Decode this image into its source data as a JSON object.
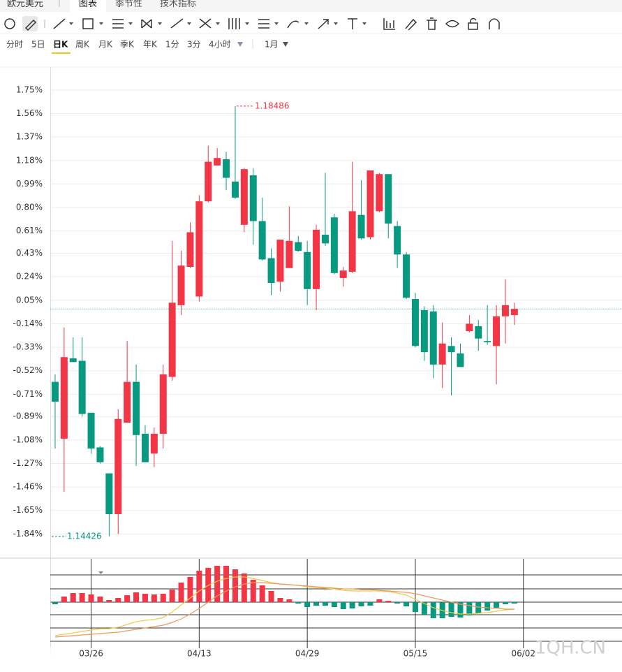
{
  "tabs": {
    "symbol": "欧元美元",
    "items": [
      "图表",
      "季节性",
      "技术指标"
    ]
  },
  "periods": [
    "分时",
    "5日",
    "日K",
    "周K",
    "月K",
    "季K",
    "年K",
    "1分",
    "3分",
    "4小时"
  ],
  "active_period": 2,
  "range": "1月",
  "watermark": "1QH.CN",
  "chart_data": [
    {
      "type": "candlestick",
      "categories": [
        null,
        null,
        null,
        null,
        "03/26",
        null,
        null,
        null,
        null,
        null,
        null,
        null,
        null,
        null,
        null,
        null,
        "04/13",
        null,
        null,
        null,
        null,
        null,
        null,
        null,
        null,
        null,
        null,
        null,
        "04/29",
        null,
        null,
        null,
        null,
        null,
        null,
        null,
        null,
        null,
        null,
        null,
        "05/15",
        null,
        null,
        null,
        null,
        null,
        null,
        null,
        null,
        null,
        null,
        null,
        "06/02"
      ],
      "open": [
        -0.61,
        -1.07,
        -0.42,
        -0.44,
        -0.86,
        -1.14,
        -1.35,
        -1.68,
        -0.94,
        -0.61,
        -1.03,
        -1.19,
        -1.03,
        -0.57,
        0.01,
        0.32,
        0.08,
        0.85,
        1.14,
        1.19,
        1.01,
        0.66,
        1.06,
        0.69,
        0.39,
        0.2,
        0.31,
        0.52,
        0.44,
        0.14,
        0.58,
        0.72,
        0.23,
        0.28,
        0.74,
        0.56,
        0.77,
        1.07,
        0.65,
        0.42,
        0.06,
        -0.03,
        -0.04,
        -0.47,
        -0.32,
        -0.38,
        -0.2,
        -0.16,
        -0.28,
        -0.32,
        -0.08,
        -0.07,
        null
      ],
      "high": [
        -0.55,
        -0.17,
        -0.25,
        -0.25,
        -0.86,
        -1.13,
        -1.35,
        -0.83,
        -0.28,
        -0.47,
        -0.96,
        -0.98,
        -0.47,
        0.53,
        0.45,
        0.68,
        0.9,
        1.3,
        1.28,
        1.25,
        1.62,
        1.12,
        1.12,
        0.88,
        0.47,
        0.54,
        0.81,
        0.57,
        0.53,
        0.66,
        1.08,
        0.75,
        0.32,
        1.17,
        1.02,
        1.1,
        1.08,
        1.07,
        0.69,
        0.44,
        0.11,
        0,
        0.01,
        -0.13,
        -0.25,
        -0.3,
        -0.07,
        -0.11,
        0.01,
        0.01,
        0.22,
        0.03,
        null
      ],
      "low": [
        -1.15,
        -1.5,
        -0.45,
        -0.89,
        -1.19,
        -1.27,
        -1.86,
        -1.84,
        -0.94,
        -1.29,
        -1.26,
        -1.3,
        -1.15,
        -0.6,
        -0.07,
        0.31,
        0.04,
        0.84,
        1.14,
        0.94,
        0.87,
        0.6,
        0.5,
        0.37,
        0.09,
        0.12,
        0.31,
        0.44,
        0.01,
        -0.03,
        0.49,
        0.26,
        0.16,
        0.27,
        0.54,
        0.54,
        0.76,
        0.55,
        0.31,
        0.06,
        -0.33,
        -0.44,
        -0.58,
        -0.66,
        -0.72,
        -0.49,
        -0.21,
        -0.36,
        -0.31,
        -0.63,
        -0.3,
        -0.15,
        null
      ],
      "close": [
        -0.77,
        -0.41,
        -0.45,
        -0.87,
        -1.15,
        -1.26,
        -1.68,
        -0.91,
        -0.61,
        -1.04,
        -1.26,
        -1.03,
        -0.55,
        0.03,
        0.33,
        0.6,
        0.85,
        1.17,
        1.2,
        1.04,
        0.88,
        1.11,
        0.69,
        0.38,
        0.19,
        0.54,
        0.53,
        0.45,
        0.14,
        0.62,
        0.51,
        0.27,
        0.29,
        0.77,
        0.55,
        1.1,
        1.07,
        0.67,
        0.42,
        0.07,
        -0.32,
        -0.37,
        -0.47,
        -0.3,
        -0.37,
        -0.49,
        -0.14,
        -0.26,
        -0.29,
        -0.08,
        0.01,
        -0.02,
        null
      ],
      "up_color": "#f23645",
      "down_color": "#089981",
      "ylim": [
        -2.03,
        1.93
      ],
      "yticks": [
        {
          "value": 1.75,
          "label": "1.75%"
        },
        {
          "value": 1.56,
          "label": "1.56%"
        },
        {
          "value": 1.37,
          "label": "1.37%"
        },
        {
          "value": 1.18,
          "label": "1.18%"
        },
        {
          "value": 0.99,
          "label": "0.99%"
        },
        {
          "value": 0.8,
          "label": "0.80%"
        },
        {
          "value": 0.61,
          "label": "0.61%"
        },
        {
          "value": 0.43,
          "label": "0.43%"
        },
        {
          "value": 0.24,
          "label": "0.24%"
        },
        {
          "value": 0.05,
          "label": "0.05%"
        },
        {
          "value": -0.14,
          "label": "-0.14%"
        },
        {
          "value": -0.33,
          "label": "-0.33%"
        },
        {
          "value": -0.52,
          "label": "-0.52%"
        },
        {
          "value": -0.71,
          "label": "-0.71%"
        },
        {
          "value": -0.89,
          "label": "-0.89%"
        },
        {
          "value": -1.08,
          "label": "-1.08%"
        },
        {
          "value": -1.27,
          "label": "-1.27%"
        },
        {
          "value": -1.46,
          "label": "-1.46%"
        },
        {
          "value": -1.65,
          "label": "-1.65%"
        },
        {
          "value": -1.84,
          "label": "-1.84%"
        }
      ],
      "grid": true,
      "annotations": {
        "high": "1.18486",
        "low": "1.14426"
      },
      "last_price_line": true
    },
    {
      "type": "macd",
      "histogram": {
        "up_color": "#f23645",
        "down_color": "#089981",
        "values": [
          -0.003,
          0.008,
          0.013,
          0.013,
          0.011,
          0.008,
          0.003,
          0.006,
          0.01,
          0.014,
          0.012,
          0.011,
          0.012,
          0.018,
          0.028,
          0.036,
          0.045,
          0.049,
          0.052,
          0.052,
          0.047,
          0.041,
          0.032,
          0.024,
          0.016,
          0.006,
          0.004,
          -0.002,
          -0.007,
          -0.005,
          -0.005,
          -0.007,
          -0.01,
          -0.009,
          -0.006,
          -0.005,
          0.004,
          0.002,
          -0.002,
          -0.006,
          -0.014,
          -0.018,
          -0.023,
          -0.023,
          -0.021,
          -0.022,
          -0.019,
          -0.016,
          -0.012,
          -0.008,
          -0.003,
          -0.002,
          null
        ]
      },
      "lines": [
        {
          "color": "#f2c94c",
          "values": [
            -0.048,
            -0.046,
            -0.044,
            -0.042,
            -0.04,
            -0.038,
            -0.038,
            -0.036,
            -0.032,
            -0.028,
            -0.026,
            -0.025,
            -0.022,
            -0.014,
            -0.004,
            0.006,
            0.016,
            0.024,
            0.03,
            0.034,
            0.036,
            0.036,
            0.034,
            0.031,
            0.028,
            0.026,
            0.025,
            0.024,
            0.022,
            0.021,
            0.02,
            0.019,
            0.017,
            0.016,
            0.016,
            0.016,
            0.016,
            0.015,
            0.013,
            0.01,
            0.004,
            -0.002,
            -0.008,
            -0.012,
            -0.015,
            -0.017,
            -0.017,
            -0.016,
            -0.015,
            -0.013,
            -0.011,
            -0.01,
            null
          ]
        },
        {
          "color": "#f0995a",
          "values": [
            -0.05,
            -0.049,
            -0.048,
            -0.047,
            -0.046,
            -0.045,
            -0.044,
            -0.043,
            -0.041,
            -0.039,
            -0.037,
            -0.035,
            -0.033,
            -0.029,
            -0.024,
            -0.017,
            -0.009,
            0,
            0.009,
            0.016,
            0.022,
            0.026,
            0.028,
            0.028,
            0.027,
            0.026,
            0.025,
            0.024,
            0.023,
            0.022,
            0.021,
            0.02,
            0.019,
            0.019,
            0.018,
            0.018,
            0.017,
            0.016,
            0.015,
            0.014,
            0.012,
            0.009,
            0.006,
            0.003,
            0,
            -0.003,
            -0.005,
            -0.007,
            -0.008,
            -0.009,
            -0.01,
            -0.01,
            null
          ]
        }
      ],
      "ylim": [
        -0.078,
        0.062
      ]
    }
  ]
}
